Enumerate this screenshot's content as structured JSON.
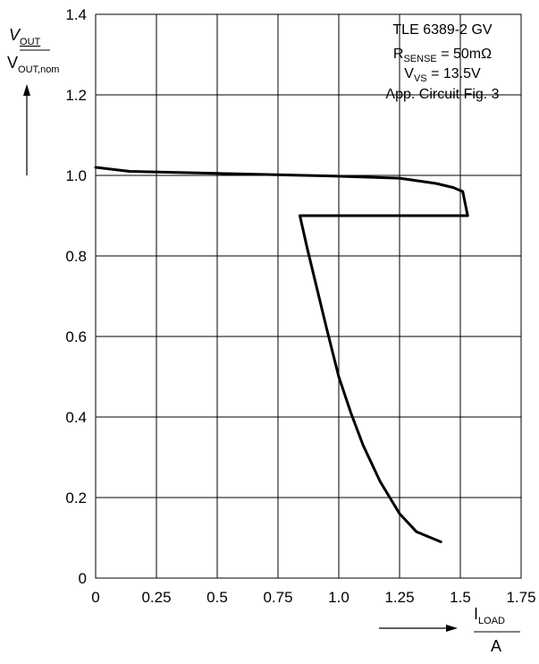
{
  "chart_data": {
    "type": "line",
    "title": "",
    "xlabel": {
      "symbol": "I",
      "subscript": "LOAD",
      "unit": "A"
    },
    "ylabel": {
      "numerator_symbol": "V",
      "numerator_subscript": "OUT",
      "denominator_symbol": "V",
      "denominator_subscript": "OUT,nom"
    },
    "xlim": [
      0,
      1.75
    ],
    "ylim": [
      0,
      1.4
    ],
    "grid": true,
    "x_ticks": [
      0,
      0.25,
      0.5,
      0.75,
      1.0,
      1.25,
      1.5,
      1.75
    ],
    "x_tick_labels": [
      "0",
      "0.25",
      "0.5",
      "0.75",
      "1.0",
      "1.25",
      "1.5",
      "1.75"
    ],
    "y_ticks": [
      0,
      0.2,
      0.4,
      0.6,
      0.8,
      1.0,
      1.2,
      1.4
    ],
    "y_tick_labels": [
      "0",
      "0.2",
      "0.4",
      "0.6",
      "0.8",
      "1.0",
      "1.2",
      "1.4"
    ],
    "annotation": {
      "line1": "TLE 6389-2 GV",
      "line2": {
        "symbol": "R",
        "subscript": "SENSE",
        "value": " = 50mΩ"
      },
      "line3": {
        "symbol": "V",
        "subscript": "VS",
        "value": " = 13.5V"
      },
      "line4": "App. Circuit Fig. 3"
    },
    "series": [
      {
        "color": "#000000",
        "points": [
          [
            0.0,
            1.02
          ],
          [
            0.14,
            1.01
          ],
          [
            0.5,
            1.005
          ],
          [
            1.0,
            0.998
          ],
          [
            1.25,
            0.993
          ],
          [
            1.4,
            0.98
          ],
          [
            1.47,
            0.97
          ],
          [
            1.51,
            0.96
          ],
          [
            1.53,
            0.9
          ],
          [
            0.84,
            0.9
          ],
          [
            0.87,
            0.82
          ],
          [
            0.95,
            0.62
          ],
          [
            1.0,
            0.5
          ],
          [
            1.05,
            0.41
          ],
          [
            1.1,
            0.33
          ],
          [
            1.17,
            0.24
          ],
          [
            1.25,
            0.16
          ],
          [
            1.32,
            0.115
          ],
          [
            1.42,
            0.09
          ]
        ]
      }
    ]
  }
}
